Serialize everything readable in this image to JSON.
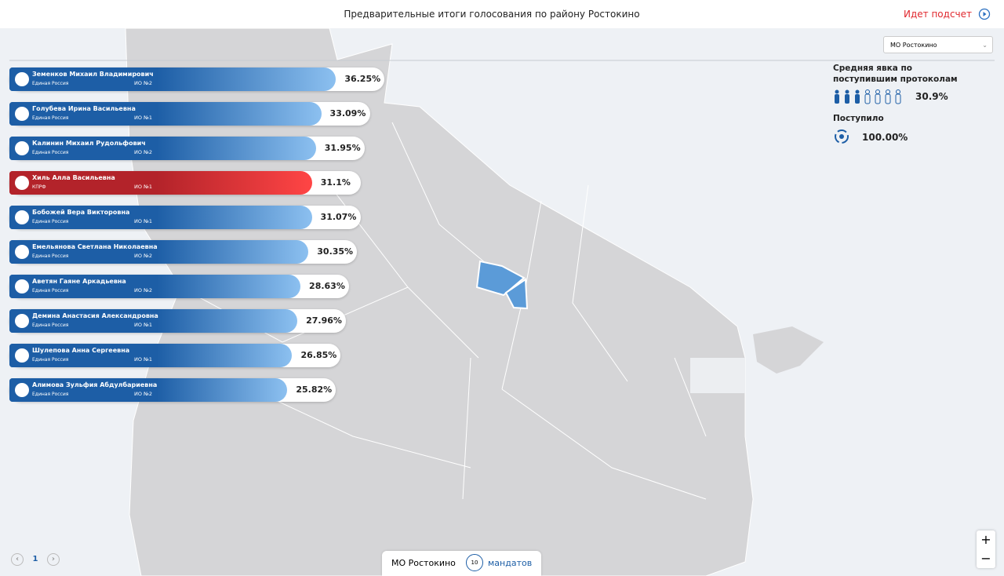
{
  "header": {
    "title": "Предварительные итоги голосования по району Ростокино",
    "status": "Идет подсчет"
  },
  "candidates": [
    {
      "name": "Земенков Михаил Владимирович",
      "party": "Единая Россия",
      "district": "ИО №2",
      "value": 36.25,
      "value_label": "36.25%",
      "color": "#8cc0f0"
    },
    {
      "name": "Голубева Ирина Васильевна",
      "party": "Единая Россия",
      "district": "ИО №1",
      "value": 33.09,
      "value_label": "33.09%",
      "color": "#8cc0f0"
    },
    {
      "name": "Калинин Михаил Рудольфович",
      "party": "Единая Россия",
      "district": "ИО №2",
      "value": 31.95,
      "value_label": "31.95%",
      "color": "#8cc0f0"
    },
    {
      "name": "Хиль Алла Васильевна",
      "party": "КПРФ",
      "district": "ИО №1",
      "value": 31.1,
      "value_label": "31.1%",
      "color": "#ff4545"
    },
    {
      "name": "Бобожей Вера Викторовна",
      "party": "Единая Россия",
      "district": "ИО №1",
      "value": 31.07,
      "value_label": "31.07%",
      "color": "#8cc0f0"
    },
    {
      "name": "Емельянова Светлана Николаевна",
      "party": "Единая Россия",
      "district": "ИО №2",
      "value": 30.35,
      "value_label": "30.35%",
      "color": "#8cc0f0"
    },
    {
      "name": "Аветян Гаяне Аркадьевна",
      "party": "Единая Россия",
      "district": "ИО №2",
      "value": 28.63,
      "value_label": "28.63%",
      "color": "#8cc0f0"
    },
    {
      "name": "Демина Анастасия Александровна",
      "party": "Единая Россия",
      "district": "ИО №1",
      "value": 27.96,
      "value_label": "27.96%",
      "color": "#8cc0f0"
    },
    {
      "name": "Шулепова Анна Сергеевна",
      "party": "Единая Россия",
      "district": "ИО №1",
      "value": 26.85,
      "value_label": "26.85%",
      "color": "#8cc0f0"
    },
    {
      "name": "Алимова Зульфия Абдулбариевна",
      "party": "Единая Россия",
      "district": "ИО №2",
      "value": 25.82,
      "value_label": "25.82%",
      "color": "#8cc0f0"
    }
  ],
  "selector": "МО Ростокино",
  "turnout": {
    "label": "Средняя явка по поступившим протоколам",
    "value": "30.9%"
  },
  "received": {
    "label": "Поступило",
    "value": "100.00%"
  },
  "pagination": {
    "page": "1"
  },
  "footer": {
    "district": "МО Ростокино",
    "mandates_count": "10",
    "mandates_label": "мандатов"
  },
  "zoom": {
    "in": "+",
    "out": "−"
  }
}
